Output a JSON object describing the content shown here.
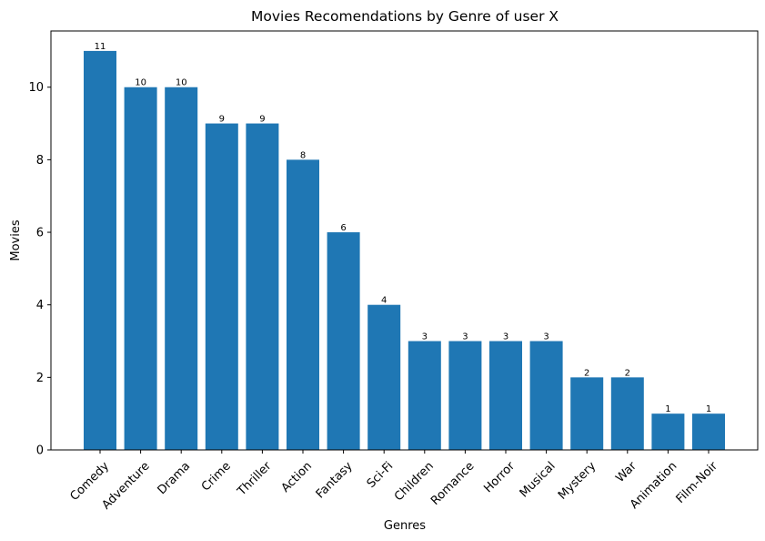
{
  "chart_data": {
    "type": "bar",
    "title": "Movies Recomendations by Genre of user X",
    "xlabel": "Genres",
    "ylabel": "Movies",
    "categories": [
      "Comedy",
      "Adventure",
      "Drama",
      "Crime",
      "Thriller",
      "Action",
      "Fantasy",
      "Sci-Fi",
      "Children",
      "Romance",
      "Horror",
      "Musical",
      "Mystery",
      "War",
      "Animation",
      "Film-Noir"
    ],
    "values": [
      11,
      10,
      10,
      9,
      9,
      8,
      6,
      4,
      3,
      3,
      3,
      3,
      2,
      2,
      1,
      1
    ],
    "ylim": [
      0,
      11.55
    ],
    "yticks": [
      0,
      2,
      4,
      6,
      8,
      10
    ],
    "grid": false,
    "bar_color": "#1f77b4",
    "data_labels": true
  }
}
